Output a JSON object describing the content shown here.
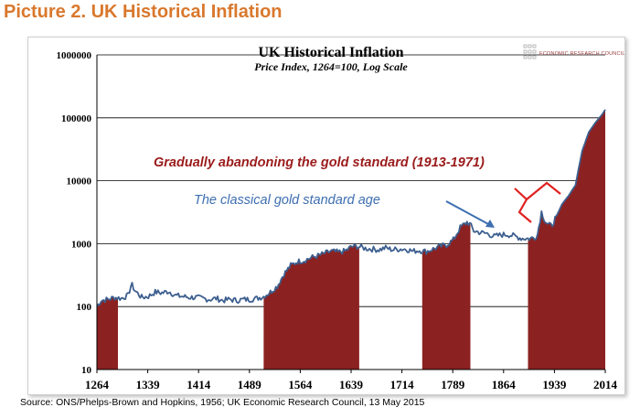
{
  "page_title": "Picture 2. UK Historical Inflation",
  "source": "Source: ONS/Phelps-Brown  and Hopkins, 1956; UK Economic Research Council, 13 May 2015",
  "logo_text": "ECONOMIC RESEARCH COUNCIL",
  "colors": {
    "title": "#d9782d",
    "line": "#3d5f8f",
    "fill": "#8b2121",
    "annotation_red": "#9b1b1b",
    "annotation_blue": "#3d6eb0"
  },
  "chart_data": {
    "type": "line",
    "title": "UK Historical Inflation",
    "subtitle": "Price Index, 1264=100, Log Scale",
    "xlabel": "",
    "ylabel": "",
    "xlim": [
      1264,
      2014
    ],
    "ylim": [
      10,
      1000000
    ],
    "y_scale": "log",
    "grid": true,
    "x_ticks": [
      1264,
      1339,
      1414,
      1489,
      1564,
      1639,
      1714,
      1789,
      1864,
      1939,
      2014
    ],
    "y_ticks": [
      10,
      100,
      1000,
      10000,
      100000,
      1000000
    ],
    "y_tick_labels": [
      "10",
      "100",
      "1000",
      "10000",
      "100000",
      "1000000"
    ],
    "series": [
      {
        "x": [
          1264,
          1270,
          1280,
          1290,
          1300,
          1310,
          1315,
          1320,
          1330,
          1340,
          1350,
          1360,
          1370,
          1380,
          1390,
          1400,
          1410,
          1420,
          1430,
          1440,
          1450,
          1460,
          1470,
          1480,
          1490,
          1500,
          1510,
          1520,
          1530,
          1540,
          1550,
          1560,
          1570,
          1580,
          1590,
          1600,
          1610,
          1620,
          1630,
          1640,
          1650,
          1660,
          1670,
          1680,
          1690,
          1700,
          1710,
          1720,
          1730,
          1740,
          1750,
          1760,
          1770,
          1780,
          1790,
          1800,
          1810,
          1815,
          1820,
          1830,
          1840,
          1850,
          1860,
          1870,
          1880,
          1890,
          1900,
          1910,
          1914,
          1920,
          1925,
          1930,
          1935,
          1940,
          1945,
          1950,
          1960,
          1970,
          1975,
          1980,
          1990,
          2000,
          2010,
          2014
        ],
        "y": [
          100,
          125,
          130,
          140,
          135,
          150,
          230,
          180,
          140,
          145,
          170,
          165,
          175,
          150,
          145,
          140,
          140,
          135,
          130,
          135,
          125,
          130,
          125,
          130,
          130,
          135,
          145,
          170,
          210,
          330,
          450,
          520,
          540,
          600,
          640,
          700,
          760,
          730,
          760,
          900,
          900,
          840,
          820,
          800,
          860,
          800,
          820,
          820,
          760,
          780,
          750,
          820,
          900,
          960,
          1150,
          1800,
          2200,
          2000,
          1600,
          1500,
          1450,
          1300,
          1380,
          1400,
          1320,
          1220,
          1200,
          1250,
          1400,
          3200,
          2300,
          2000,
          1900,
          2500,
          3200,
          4200,
          5800,
          8500,
          16000,
          30000,
          60000,
          85000,
          115000,
          135000
        ]
      }
    ],
    "shaded_periods": [
      [
        1264,
        1295
      ],
      [
        1510,
        1651
      ],
      [
        1744,
        1815
      ],
      [
        1900,
        2014
      ]
    ],
    "annotations": [
      {
        "text": "Gradually abandoning the gold standard (1913-1971)",
        "color": "red"
      },
      {
        "text": "The classical gold standard age",
        "color": "blue"
      }
    ]
  }
}
